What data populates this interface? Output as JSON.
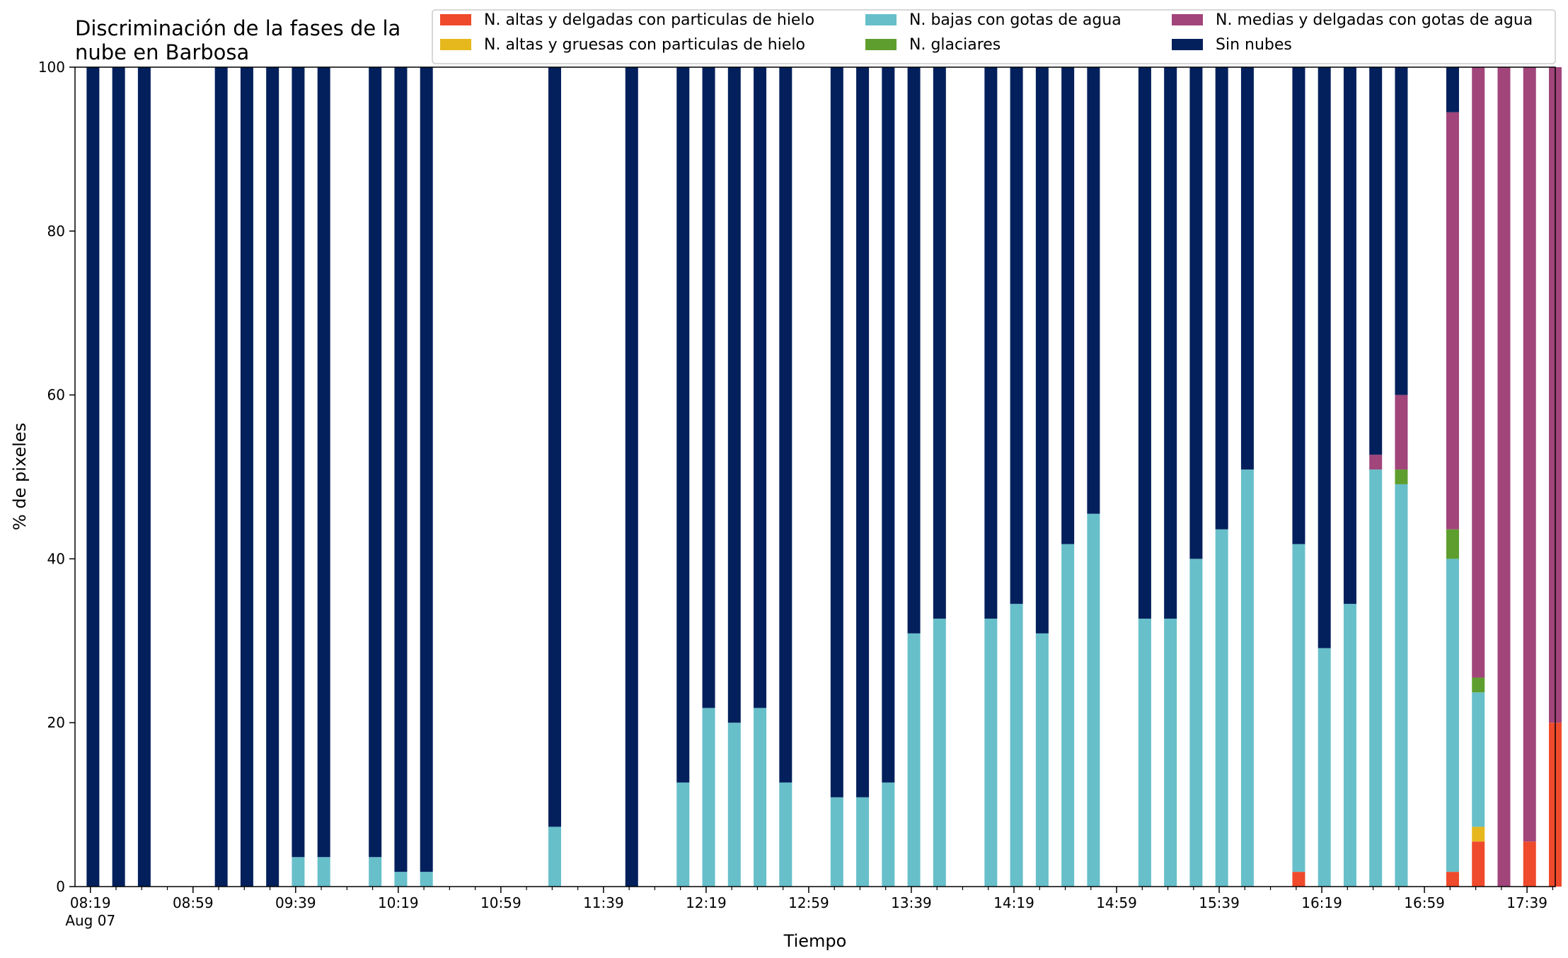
{
  "chart_data": {
    "type": "bar",
    "stacked": true,
    "title_lines": [
      "Discriminación de la fases de la",
      "nube en Barbosa"
    ],
    "xlabel": "Tiempo",
    "ylabel": "% de pixeles",
    "ylim": [
      0,
      100
    ],
    "yticks": [
      "0",
      "20",
      "40",
      "60",
      "80",
      "100"
    ],
    "x_range_minutes": [
      493,
      1070
    ],
    "major_ticks": [
      {
        "t": 499,
        "label": "08:19",
        "sub": "Aug 07"
      },
      {
        "t": 539,
        "label": "08:59",
        "sub": ""
      },
      {
        "t": 579,
        "label": "09:39",
        "sub": ""
      },
      {
        "t": 619,
        "label": "10:19",
        "sub": ""
      },
      {
        "t": 659,
        "label": "10:59",
        "sub": ""
      },
      {
        "t": 699,
        "label": "11:39",
        "sub": ""
      },
      {
        "t": 739,
        "label": "12:19",
        "sub": ""
      },
      {
        "t": 779,
        "label": "12:59",
        "sub": ""
      },
      {
        "t": 819,
        "label": "13:39",
        "sub": ""
      },
      {
        "t": 859,
        "label": "14:19",
        "sub": ""
      },
      {
        "t": 899,
        "label": "14:59",
        "sub": ""
      },
      {
        "t": 939,
        "label": "15:39",
        "sub": ""
      },
      {
        "t": 979,
        "label": "16:19",
        "sub": ""
      },
      {
        "t": 1019,
        "label": "16:59",
        "sub": ""
      },
      {
        "t": 1059,
        "label": "17:39",
        "sub": ""
      }
    ],
    "minor_tick_step_minutes": 10,
    "legend_position": "top-right",
    "legend_columns": 3,
    "series": [
      {
        "key": "alta_delg",
        "name": "N. altas y delgadas con particulas de hielo",
        "color": "#ef4a2b"
      },
      {
        "key": "alta_grue",
        "name": "N. altas y gruesas con particulas de hielo",
        "color": "#e6b81d"
      },
      {
        "key": "baja",
        "name": "N. bajas con gotas de agua",
        "color": "#67bfca"
      },
      {
        "key": "glaciar",
        "name": "N. glaciares",
        "color": "#5e9e2e"
      },
      {
        "key": "media",
        "name": "N. medias y delgadas con gotas de agua",
        "color": "#a1457b"
      },
      {
        "key": "sin",
        "name": "Sin nubes",
        "color": "#03205c"
      }
    ],
    "legend_order": [
      "alta_delg",
      "alta_grue",
      "baja",
      "glaciar",
      "media",
      "sin"
    ],
    "stack_order": [
      "alta_delg",
      "alta_grue",
      "baja",
      "glaciar",
      "media",
      "sin"
    ],
    "bars": [
      {
        "time": "08:20",
        "alta_delg": 0,
        "alta_grue": 0,
        "baja": 0,
        "glaciar": 0,
        "media": 0,
        "sin": 100
      },
      {
        "time": "08:30",
        "alta_delg": 0,
        "alta_grue": 0,
        "baja": 0,
        "glaciar": 0,
        "media": 0,
        "sin": 100
      },
      {
        "time": "08:40",
        "alta_delg": 0,
        "alta_grue": 0,
        "baja": 0,
        "glaciar": 0,
        "media": 0,
        "sin": 100
      },
      {
        "time": "09:10",
        "alta_delg": 0,
        "alta_grue": 0,
        "baja": 0,
        "glaciar": 0,
        "media": 0,
        "sin": 100
      },
      {
        "time": "09:20",
        "alta_delg": 0,
        "alta_grue": 0,
        "baja": 0,
        "glaciar": 0,
        "media": 0,
        "sin": 100
      },
      {
        "time": "09:30",
        "alta_delg": 0,
        "alta_grue": 0,
        "baja": 0,
        "glaciar": 0,
        "media": 0,
        "sin": 100
      },
      {
        "time": "09:40",
        "alta_delg": 0,
        "alta_grue": 0,
        "baja": 3.6,
        "glaciar": 0,
        "media": 0,
        "sin": 96.4
      },
      {
        "time": "09:50",
        "alta_delg": 0,
        "alta_grue": 0,
        "baja": 3.6,
        "glaciar": 0,
        "media": 0,
        "sin": 96.4
      },
      {
        "time": "10:10",
        "alta_delg": 0,
        "alta_grue": 0,
        "baja": 3.6,
        "glaciar": 0,
        "media": 0,
        "sin": 96.4
      },
      {
        "time": "10:20",
        "alta_delg": 0,
        "alta_grue": 0,
        "baja": 1.8,
        "glaciar": 0,
        "media": 0,
        "sin": 98.2
      },
      {
        "time": "10:30",
        "alta_delg": 0,
        "alta_grue": 0,
        "baja": 1.8,
        "glaciar": 0,
        "media": 0,
        "sin": 98.2
      },
      {
        "time": "11:20",
        "alta_delg": 0,
        "alta_grue": 0,
        "baja": 7.3,
        "glaciar": 0,
        "media": 0,
        "sin": 92.7
      },
      {
        "time": "11:50",
        "alta_delg": 0,
        "alta_grue": 0,
        "baja": 0,
        "glaciar": 0,
        "media": 0,
        "sin": 100
      },
      {
        "time": "12:10",
        "alta_delg": 0,
        "alta_grue": 0,
        "baja": 12.7,
        "glaciar": 0,
        "media": 0,
        "sin": 87.3
      },
      {
        "time": "12:20",
        "alta_delg": 0,
        "alta_grue": 0,
        "baja": 21.8,
        "glaciar": 0,
        "media": 0,
        "sin": 78.2
      },
      {
        "time": "12:30",
        "alta_delg": 0,
        "alta_grue": 0,
        "baja": 20.0,
        "glaciar": 0,
        "media": 0,
        "sin": 80.0
      },
      {
        "time": "12:40",
        "alta_delg": 0,
        "alta_grue": 0,
        "baja": 21.8,
        "glaciar": 0,
        "media": 0,
        "sin": 78.2
      },
      {
        "time": "12:50",
        "alta_delg": 0,
        "alta_grue": 0,
        "baja": 12.7,
        "glaciar": 0,
        "media": 0,
        "sin": 87.3
      },
      {
        "time": "13:10",
        "alta_delg": 0,
        "alta_grue": 0,
        "baja": 10.9,
        "glaciar": 0,
        "media": 0,
        "sin": 89.1
      },
      {
        "time": "13:20",
        "alta_delg": 0,
        "alta_grue": 0,
        "baja": 10.9,
        "glaciar": 0,
        "media": 0,
        "sin": 89.1
      },
      {
        "time": "13:30",
        "alta_delg": 0,
        "alta_grue": 0,
        "baja": 12.7,
        "glaciar": 0,
        "media": 0,
        "sin": 87.3
      },
      {
        "time": "13:40",
        "alta_delg": 0,
        "alta_grue": 0,
        "baja": 30.9,
        "glaciar": 0,
        "media": 0,
        "sin": 69.1
      },
      {
        "time": "13:50",
        "alta_delg": 0,
        "alta_grue": 0,
        "baja": 32.7,
        "glaciar": 0,
        "media": 0,
        "sin": 67.3
      },
      {
        "time": "14:10",
        "alta_delg": 0,
        "alta_grue": 0,
        "baja": 32.7,
        "glaciar": 0,
        "media": 0,
        "sin": 67.3
      },
      {
        "time": "14:20",
        "alta_delg": 0,
        "alta_grue": 0,
        "baja": 34.5,
        "glaciar": 0,
        "media": 0,
        "sin": 65.5
      },
      {
        "time": "14:30",
        "alta_delg": 0,
        "alta_grue": 0,
        "baja": 30.9,
        "glaciar": 0,
        "media": 0,
        "sin": 69.1
      },
      {
        "time": "14:40",
        "alta_delg": 0,
        "alta_grue": 0,
        "baja": 41.8,
        "glaciar": 0,
        "media": 0,
        "sin": 58.2
      },
      {
        "time": "14:50",
        "alta_delg": 0,
        "alta_grue": 0,
        "baja": 45.5,
        "glaciar": 0,
        "media": 0,
        "sin": 54.5
      },
      {
        "time": "15:10",
        "alta_delg": 0,
        "alta_grue": 0,
        "baja": 32.7,
        "glaciar": 0,
        "media": 0,
        "sin": 67.3
      },
      {
        "time": "15:20",
        "alta_delg": 0,
        "alta_grue": 0,
        "baja": 32.7,
        "glaciar": 0,
        "media": 0,
        "sin": 67.3
      },
      {
        "time": "15:30",
        "alta_delg": 0,
        "alta_grue": 0,
        "baja": 40.0,
        "glaciar": 0,
        "media": 0,
        "sin": 60.0
      },
      {
        "time": "15:40",
        "alta_delg": 0,
        "alta_grue": 0,
        "baja": 43.6,
        "glaciar": 0,
        "media": 0,
        "sin": 56.4
      },
      {
        "time": "15:50",
        "alta_delg": 0,
        "alta_grue": 0,
        "baja": 50.9,
        "glaciar": 0,
        "media": 0,
        "sin": 49.1
      },
      {
        "time": "16:10",
        "alta_delg": 1.8,
        "alta_grue": 0,
        "baja": 40.0,
        "glaciar": 0,
        "media": 0,
        "sin": 58.2
      },
      {
        "time": "16:20",
        "alta_delg": 0,
        "alta_grue": 0,
        "baja": 29.1,
        "glaciar": 0,
        "media": 0,
        "sin": 70.9
      },
      {
        "time": "16:30",
        "alta_delg": 0,
        "alta_grue": 0,
        "baja": 34.5,
        "glaciar": 0,
        "media": 0,
        "sin": 65.5
      },
      {
        "time": "16:40",
        "alta_delg": 0,
        "alta_grue": 0,
        "baja": 50.9,
        "glaciar": 0,
        "media": 1.8,
        "sin": 47.3
      },
      {
        "time": "16:50",
        "alta_delg": 0,
        "alta_grue": 0,
        "baja": 49.1,
        "glaciar": 1.8,
        "media": 9.1,
        "sin": 40.0
      },
      {
        "time": "17:10",
        "alta_delg": 1.8,
        "alta_grue": 0,
        "baja": 38.2,
        "glaciar": 3.6,
        "media": 50.9,
        "sin": 5.5
      },
      {
        "time": "17:20",
        "alta_delg": 5.5,
        "alta_grue": 1.8,
        "baja": 16.4,
        "glaciar": 1.8,
        "media": 74.5,
        "sin": 0
      },
      {
        "time": "17:30",
        "alta_delg": 0,
        "alta_grue": 0,
        "baja": 0,
        "glaciar": 0,
        "media": 100,
        "sin": 0
      },
      {
        "time": "17:40",
        "alta_delg": 5.5,
        "alta_grue": 0,
        "baja": 0,
        "glaciar": 0,
        "media": 94.5,
        "sin": 0
      },
      {
        "time": "17:50",
        "alta_delg": 20.0,
        "alta_grue": 0,
        "baja": 0,
        "glaciar": 0,
        "media": 80.0,
        "sin": 0
      }
    ]
  }
}
